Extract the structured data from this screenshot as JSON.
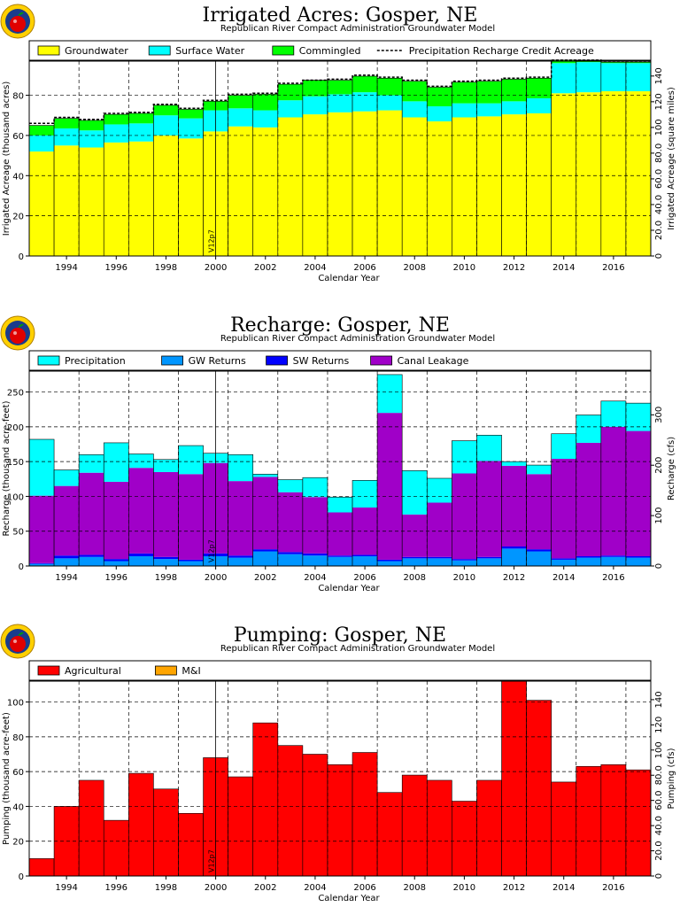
{
  "chart_data": [
    {
      "type": "bar",
      "stacked": true,
      "title": "Irrigated Acres: Gosper, NE",
      "subtitle": "Republican River Compact Administration Groundwater Model",
      "xlabel": "Calendar Year",
      "ylabel": "Irrigated Acreage (thousand acres)",
      "y2label": "Irrigated Acreage (square miles)",
      "x": [
        1993,
        1994,
        1995,
        1996,
        1997,
        1998,
        1999,
        2000,
        2001,
        2002,
        2003,
        2004,
        2005,
        2006,
        2007,
        2008,
        2009,
        2010,
        2011,
        2012,
        2013,
        2014,
        2015,
        2016,
        2017
      ],
      "x_ticks": [
        "1994",
        "1996",
        "1998",
        "2000",
        "2002",
        "2004",
        "2006",
        "2008",
        "2010",
        "2012",
        "2014",
        "2016"
      ],
      "y_ticks": [
        "0",
        "20",
        "40",
        "60",
        "80"
      ],
      "y2_ticks": [
        "0",
        "20.0",
        "40.0",
        "60.0",
        "80.0",
        "100",
        "120",
        "140"
      ],
      "ylim": [
        0,
        97
      ],
      "y2lim": [
        0,
        151.6
      ],
      "marker_label": "V12p7",
      "marker_x": 2000.5,
      "grid": true,
      "legend_position": "top",
      "series": [
        {
          "name": "Groundwater",
          "color": "#ffff00",
          "values": [
            52,
            55,
            54,
            56.5,
            57,
            60,
            58.5,
            62,
            64.5,
            64,
            69,
            70.5,
            71.5,
            72,
            72.5,
            69,
            67,
            69,
            69.5,
            70.5,
            71,
            81,
            81.5,
            82,
            82
          ]
        },
        {
          "name": "Surface Water",
          "color": "#00ffff",
          "values": [
            8,
            8.5,
            8.5,
            9,
            9,
            10,
            10,
            10.5,
            9,
            8.5,
            8.5,
            9,
            9,
            9.5,
            7.5,
            8,
            7.5,
            7,
            6.5,
            6.5,
            7.5,
            15,
            15,
            14,
            14
          ]
        },
        {
          "name": "Commingled",
          "color": "#00ff00",
          "values": [
            5,
            5,
            5,
            5,
            5,
            5,
            4.5,
            4.5,
            6.5,
            8,
            8,
            8,
            7,
            8,
            8.5,
            10,
            9.5,
            10.5,
            11,
            11,
            10,
            1.5,
            0.5,
            0.5,
            0.5
          ]
        }
      ],
      "line_series": {
        "name": "Precipitation Recharge Credit Acreage",
        "style": "dashed",
        "values": [
          66,
          69,
          68,
          71,
          71.5,
          75.5,
          73.5,
          77.5,
          80.5,
          81,
          86,
          87.5,
          88,
          90,
          89,
          87.5,
          84.5,
          87,
          87.5,
          88.5,
          89,
          97.5,
          97.5,
          97,
          97
        ]
      }
    },
    {
      "type": "bar",
      "stacked": true,
      "title": "Recharge: Gosper, NE",
      "subtitle": "Republican River Compact Administration Groundwater Model",
      "xlabel": "Calendar Year",
      "ylabel": "Recharge (thousand acre-feet)",
      "y2label": "Recharge (cfs)",
      "x": [
        1993,
        1994,
        1995,
        1996,
        1997,
        1998,
        1999,
        2000,
        2001,
        2002,
        2003,
        2004,
        2005,
        2006,
        2007,
        2008,
        2009,
        2010,
        2011,
        2012,
        2013,
        2014,
        2015,
        2016,
        2017
      ],
      "x_ticks": [
        "1994",
        "1996",
        "1998",
        "2000",
        "2002",
        "2004",
        "2006",
        "2008",
        "2010",
        "2012",
        "2014",
        "2016"
      ],
      "y_ticks": [
        "0",
        "50",
        "100",
        "150",
        "200",
        "250"
      ],
      "y2_ticks": [
        "0",
        "100",
        "200",
        "300"
      ],
      "ylim": [
        0,
        280
      ],
      "y2lim": [
        0,
        386.7
      ],
      "marker_label": "V12p7",
      "marker_x": 2000.5,
      "grid": true,
      "legend_position": "top",
      "series": [
        {
          "name": "GW Returns",
          "color": "#0096ff",
          "values": [
            3,
            11,
            13,
            7,
            14,
            10,
            7,
            14,
            12,
            21,
            17,
            15,
            13,
            14,
            7,
            11,
            11,
            8,
            11,
            25,
            21,
            9,
            12,
            13,
            12
          ]
        },
        {
          "name": "SW Returns",
          "color": "#0000ff",
          "values": [
            1,
            4,
            3,
            3,
            4,
            3,
            2,
            4,
            3,
            3,
            3,
            3,
            2,
            2,
            2,
            2,
            2,
            2,
            2,
            3,
            3,
            2,
            2,
            2,
            2
          ]
        },
        {
          "name": "Canal Leakage",
          "color": "#a000c8",
          "values": [
            97,
            100,
            118,
            111,
            123,
            122,
            123,
            130,
            107,
            104,
            86,
            81,
            62,
            68,
            211,
            61,
            78,
            123,
            138,
            116,
            108,
            143,
            163,
            185,
            180
          ]
        },
        {
          "name": "Precipitation",
          "color": "#00ffff",
          "values": [
            81,
            23,
            26,
            56,
            20,
            18,
            41,
            14,
            38,
            4,
            18,
            28,
            22,
            39,
            55,
            63,
            35,
            47,
            37,
            6,
            13,
            36,
            40,
            37,
            40
          ]
        }
      ]
    },
    {
      "type": "bar",
      "stacked": true,
      "title": "Pumping: Gosper, NE",
      "subtitle": "Republican River Compact Administration Groundwater Model",
      "xlabel": "Calendar Year",
      "ylabel": "Pumping (thousand acre-feet)",
      "y2label": "Pumping (cfs)",
      "x": [
        1993,
        1994,
        1995,
        1996,
        1997,
        1998,
        1999,
        2000,
        2001,
        2002,
        2003,
        2004,
        2005,
        2006,
        2007,
        2008,
        2009,
        2010,
        2011,
        2012,
        2013,
        2014,
        2015,
        2016,
        2017
      ],
      "x_ticks": [
        "1994",
        "1996",
        "1998",
        "2000",
        "2002",
        "2004",
        "2006",
        "2008",
        "2010",
        "2012",
        "2014",
        "2016"
      ],
      "y_ticks": [
        "0",
        "20",
        "40",
        "60",
        "80",
        "100"
      ],
      "y2_ticks": [
        "0",
        "20.0",
        "40.0",
        "60.0",
        "80.0",
        "100",
        "120",
        "140"
      ],
      "ylim": [
        0,
        112
      ],
      "y2lim": [
        0,
        154.7
      ],
      "marker_label": "V12p7",
      "marker_x": 2000.5,
      "grid": true,
      "legend_position": "top",
      "series": [
        {
          "name": "Agricultural",
          "color": "#ff0000",
          "values": [
            10,
            40,
            55,
            32,
            59,
            50,
            36,
            68,
            57,
            88,
            75,
            70,
            64,
            71,
            48,
            58,
            55,
            43,
            55,
            112,
            101,
            54,
            63,
            64,
            61
          ]
        },
        {
          "name": "M&I",
          "color": "#ffa500",
          "values": [
            0,
            0,
            0,
            0,
            0,
            0,
            0,
            0,
            0,
            0,
            0,
            0,
            0,
            0,
            0,
            0,
            0,
            0,
            0,
            0,
            0,
            0,
            0,
            0,
            0
          ]
        }
      ]
    }
  ]
}
